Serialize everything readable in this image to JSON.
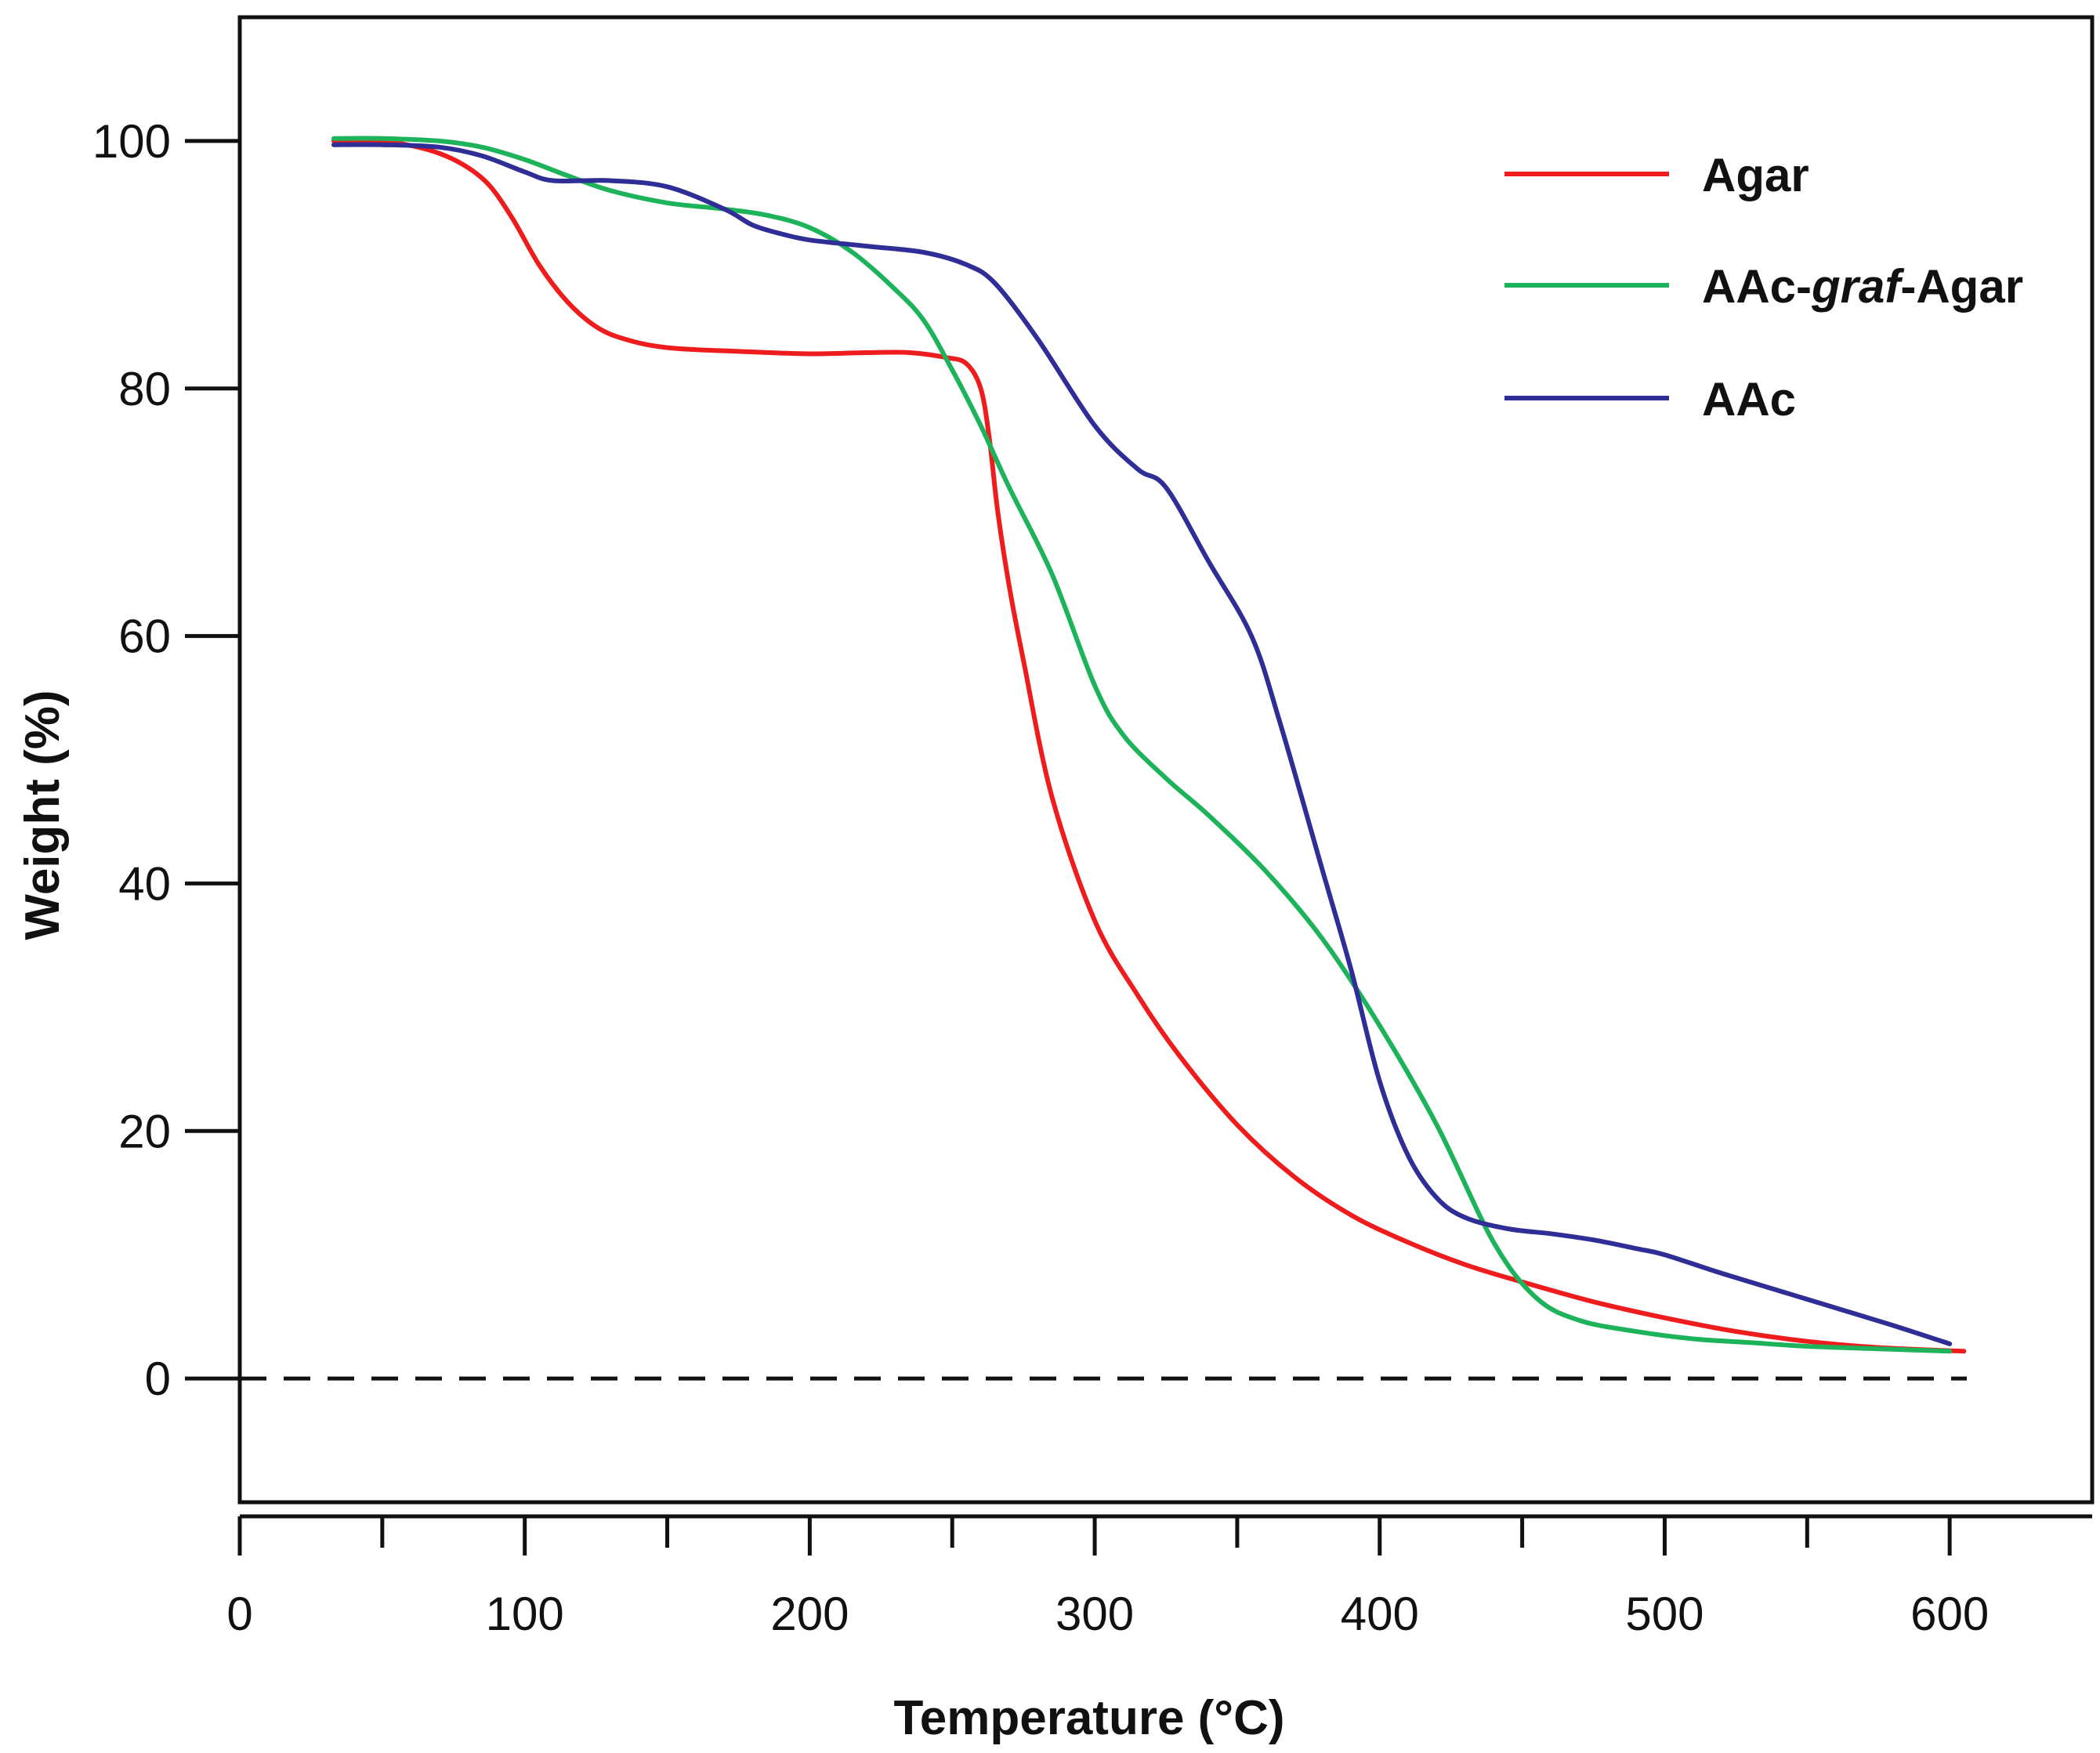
{
  "chart_data": {
    "type": "line",
    "title": "",
    "xlabel": "Temperature  (°C)",
    "ylabel": "Weight  (%)",
    "xlim": [
      0,
      650
    ],
    "ylim": [
      -10,
      110
    ],
    "x_ticks": [
      0,
      100,
      200,
      300,
      400,
      500,
      600
    ],
    "x_minor_ticks": [
      50,
      150,
      250,
      350,
      450,
      550
    ],
    "y_ticks": [
      0,
      20,
      40,
      60,
      80,
      100
    ],
    "y_tick_labels": [
      "0",
      "20",
      "40",
      "60",
      "80",
      "100"
    ],
    "x_tick_labels": [
      "0",
      "100",
      "200",
      "300",
      "400",
      "500",
      "600"
    ],
    "reference_line": {
      "y": 0,
      "style": "dashed"
    },
    "grid": false,
    "legend_position": "top-right",
    "legend": {
      "agar": "Agar",
      "graft_prefix": "AAc-",
      "graft_italic": "graf",
      "graft_suffix": "-Agar",
      "aac": "AAc"
    },
    "series": [
      {
        "name": "Agar",
        "color": "#ee1c1c",
        "x": [
          33,
          50,
          70,
          85,
          95,
          105,
          115,
          125,
          135,
          150,
          175,
          200,
          220,
          235,
          248,
          255,
          260,
          263,
          266,
          270,
          275,
          285,
          300,
          315,
          330,
          350,
          370,
          390,
          410,
          430,
          450,
          475,
          500,
          525,
          550,
          575,
          605
        ],
        "y": [
          100,
          100,
          99,
          97,
          94,
          90,
          87,
          85,
          84,
          83.3,
          83,
          82.8,
          82.9,
          82.9,
          82.5,
          82,
          80,
          76,
          70,
          64,
          58,
          47,
          37,
          31,
          26,
          20.5,
          16.3,
          13.2,
          11,
          9.2,
          7.8,
          6.2,
          4.9,
          3.8,
          3,
          2.5,
          2.2
        ]
      },
      {
        "name": "AAc-graf-Agar",
        "color": "#1cb35a",
        "x": [
          33,
          50,
          70,
          85,
          100,
          115,
          130,
          150,
          170,
          185,
          200,
          215,
          230,
          240,
          250,
          260,
          270,
          285,
          300,
          310,
          325,
          340,
          360,
          380,
          400,
          420,
          440,
          455,
          470,
          490,
          510,
          530,
          550,
          575,
          600
        ],
        "y": [
          100.2,
          100.2,
          100,
          99.5,
          98.5,
          97.2,
          96,
          95,
          94.5,
          94,
          93,
          91,
          88,
          85.5,
          81.5,
          77,
          72,
          65,
          56,
          52,
          48.5,
          45.5,
          41,
          35.5,
          28.5,
          20.5,
          11,
          6.5,
          4.7,
          3.8,
          3.2,
          2.9,
          2.6,
          2.4,
          2.2
        ]
      },
      {
        "name": "AAc",
        "color": "#2f2d96",
        "x": [
          33,
          50,
          70,
          85,
          100,
          110,
          130,
          150,
          170,
          180,
          190,
          200,
          220,
          240,
          255,
          265,
          280,
          300,
          315,
          325,
          340,
          355,
          365,
          380,
          390,
          400,
          410,
          420,
          430,
          445,
          460,
          475,
          490,
          500,
          520,
          550,
          580,
          600
        ],
        "y": [
          99.7,
          99.7,
          99.5,
          98.8,
          97.5,
          96.8,
          96.8,
          96.3,
          94.5,
          93.2,
          92.5,
          92,
          91.5,
          91,
          90,
          88.5,
          84,
          77,
          73.5,
          72,
          66,
          60,
          53,
          41,
          33,
          24,
          18,
          14.6,
          13,
          12.1,
          11.7,
          11.2,
          10.5,
          10,
          8.5,
          6.4,
          4.3,
          2.8
        ]
      }
    ]
  }
}
